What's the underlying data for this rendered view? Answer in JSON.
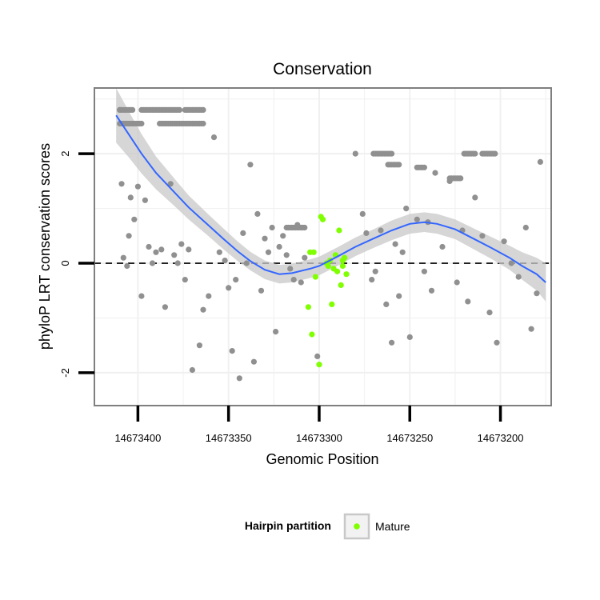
{
  "chart_data": {
    "type": "scatter",
    "title": "Conservation",
    "xlabel": "Genomic Position",
    "ylabel": "phyloP LRT conservation scores",
    "x_reversed": true,
    "xlim": [
      14673424,
      14673172
    ],
    "ylim": [
      -2.6,
      3.2
    ],
    "x_ticks": [
      14673400,
      14673350,
      14673300,
      14673250,
      14673200
    ],
    "y_ticks": [
      -2,
      0,
      2
    ],
    "y_tick_labels": [
      "-2",
      "0",
      "2"
    ],
    "grid": true,
    "reference_line": {
      "y": 0,
      "style": "dashed"
    },
    "legend": {
      "position": "bottom",
      "title": "Hairpin partition",
      "entries": [
        {
          "label": "Mature",
          "color": "#7fff00"
        }
      ]
    },
    "colors": {
      "other_points": "#909090",
      "mature_points": "#7fff00",
      "smooth_line": "#3366ff",
      "smooth_band": "#c8c8c8",
      "panel_border": "#7f7f7f",
      "grid": "#f0f0f0"
    },
    "smooth": {
      "x": [
        14673412,
        14673405,
        14673398,
        14673390,
        14673380,
        14673372,
        14673362,
        14673353,
        14673345,
        14673338,
        14673330,
        14673322,
        14673315,
        14673305,
        14673300,
        14673290,
        14673280,
        14673270,
        14673260,
        14673250,
        14673242,
        14673235,
        14673225,
        14673215,
        14673205,
        14673195,
        14673188,
        14673180,
        14673175
      ],
      "y": [
        2.7,
        2.35,
        2.0,
        1.65,
        1.3,
        1.02,
        0.72,
        0.45,
        0.22,
        0.04,
        -0.12,
        -0.2,
        -0.18,
        -0.1,
        -0.05,
        0.12,
        0.3,
        0.45,
        0.6,
        0.72,
        0.75,
        0.72,
        0.62,
        0.45,
        0.28,
        0.1,
        -0.05,
        -0.2,
        -0.35
      ],
      "se": [
        0.5,
        0.42,
        0.36,
        0.3,
        0.25,
        0.22,
        0.2,
        0.19,
        0.18,
        0.17,
        0.17,
        0.17,
        0.17,
        0.17,
        0.17,
        0.17,
        0.17,
        0.17,
        0.18,
        0.18,
        0.18,
        0.18,
        0.18,
        0.19,
        0.2,
        0.22,
        0.25,
        0.3,
        0.35
      ]
    },
    "series": [
      {
        "name": "Mature",
        "color": "#7fff00",
        "x": [
          14673306,
          14673305,
          14673304,
          14673303,
          14673302,
          14673300,
          14673299,
          14673298,
          14673296,
          14673295,
          14673294,
          14673293,
          14673292,
          14673291,
          14673290,
          14673289,
          14673288,
          14673287,
          14673287,
          14673286,
          14673285
        ],
        "y": [
          -0.8,
          0.2,
          -1.3,
          0.2,
          -0.25,
          -1.85,
          0.85,
          0.8,
          0.0,
          -0.05,
          0.05,
          -0.75,
          -0.1,
          0.15,
          -0.15,
          0.6,
          -0.4,
          -0.05,
          0.05,
          0.1,
          -0.2
        ]
      },
      {
        "name": "",
        "color": "#909090",
        "x": [
          14673410,
          14673409,
          14673408,
          14673406,
          14673405,
          14673404,
          14673402,
          14673400,
          14673398,
          14673396,
          14673394,
          14673392,
          14673390,
          14673387,
          14673385,
          14673382,
          14673380,
          14673378,
          14673376,
          14673374,
          14673372,
          14673370,
          14673366,
          14673364,
          14673361,
          14673358,
          14673355,
          14673352,
          14673350,
          14673348,
          14673346,
          14673344,
          14673342,
          14673340,
          14673338,
          14673336,
          14673334,
          14673332,
          14673330,
          14673328,
          14673326,
          14673324,
          14673322,
          14673320,
          14673318,
          14673316,
          14673314,
          14673312,
          14673310,
          14673308,
          14673301,
          14673280,
          14673276,
          14673274,
          14673271,
          14673269,
          14673266,
          14673263,
          14673260,
          14673258,
          14673256,
          14673254,
          14673252,
          14673250,
          14673246,
          14673242,
          14673240,
          14673238,
          14673236,
          14673232,
          14673228,
          14673224,
          14673221,
          14673218,
          14673214,
          14673210,
          14673206,
          14673202,
          14673198,
          14673194,
          14673190,
          14673186,
          14673183,
          14673180,
          14673178
        ],
        "y": [
          2.8,
          1.45,
          0.1,
          -0.05,
          0.5,
          1.2,
          0.8,
          1.4,
          -0.6,
          1.15,
          0.3,
          0.0,
          0.2,
          0.25,
          -0.8,
          1.45,
          0.15,
          0.0,
          0.35,
          -0.3,
          0.25,
          -1.95,
          -1.5,
          -0.85,
          -0.6,
          2.3,
          0.2,
          0.05,
          -0.45,
          -1.6,
          -0.3,
          -2.1,
          0.55,
          0.0,
          1.8,
          -1.8,
          0.9,
          -0.5,
          0.45,
          0.2,
          0.65,
          -1.25,
          0.3,
          0.5,
          0.15,
          -0.1,
          -0.3,
          0.7,
          -0.35,
          0.1,
          -1.7,
          2.0,
          0.9,
          0.55,
          -0.3,
          -0.15,
          0.6,
          -0.75,
          -1.45,
          0.35,
          -0.6,
          0.2,
          1.0,
          -1.35,
          0.8,
          -0.15,
          0.75,
          -0.5,
          1.65,
          0.3,
          1.5,
          -0.35,
          0.6,
          -0.7,
          1.2,
          0.5,
          -0.9,
          -1.45,
          0.4,
          0.0,
          -0.25,
          0.65,
          -1.2,
          -0.55,
          1.85
        ]
      }
    ],
    "point_runs": [
      {
        "x_from": 14673410,
        "x_to": 14673403,
        "y": 2.8
      },
      {
        "x_from": 14673398,
        "x_to": 14673377,
        "y": 2.8
      },
      {
        "x_from": 14673374,
        "x_to": 14673364,
        "y": 2.8
      },
      {
        "x_from": 14673410,
        "x_to": 14673398,
        "y": 2.55
      },
      {
        "x_from": 14673388,
        "x_to": 14673364,
        "y": 2.55
      },
      {
        "x_from": 14673318,
        "x_to": 14673308,
        "y": 0.65
      },
      {
        "x_from": 14673270,
        "x_to": 14673260,
        "y": 2.0
      },
      {
        "x_from": 14673262,
        "x_to": 14673256,
        "y": 1.8
      },
      {
        "x_from": 14673228,
        "x_to": 14673222,
        "y": 1.55
      },
      {
        "x_from": 14673220,
        "x_to": 14673214,
        "y": 2.0
      },
      {
        "x_from": 14673210,
        "x_to": 14673203,
        "y": 2.0
      },
      {
        "x_from": 14673246,
        "x_to": 14673242,
        "y": 1.75
      }
    ]
  }
}
